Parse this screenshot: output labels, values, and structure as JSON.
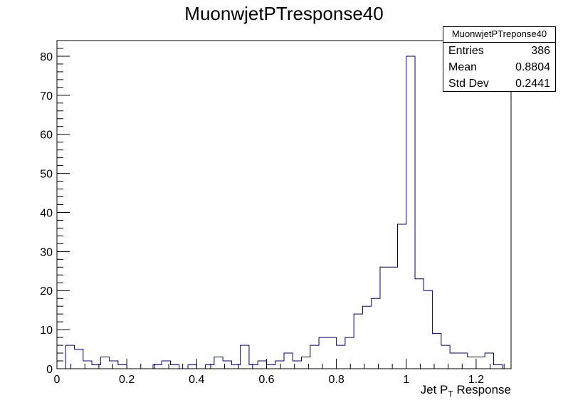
{
  "chart_data": {
    "type": "bar",
    "title": "MuonwjetPTresponse40",
    "xlabel_main": "Jet P",
    "xlabel_sub": "T",
    "xlabel_rest": " Response",
    "ylabel": "",
    "xlim": [
      0,
      1.3
    ],
    "ylim": [
      0,
      84
    ],
    "bin_width": 0.025,
    "bin_values": [
      0,
      6,
      5,
      2,
      1,
      3,
      2,
      1,
      0,
      0,
      0,
      1,
      2,
      1,
      0,
      1,
      0,
      1,
      3,
      2,
      1,
      6,
      1,
      2,
      1,
      2,
      4,
      2,
      3,
      6,
      8,
      8,
      6,
      8,
      14,
      16,
      18,
      26,
      26,
      37,
      80,
      23,
      20,
      9,
      6,
      4,
      4,
      3,
      3,
      4,
      1,
      0
    ],
    "x_ticks": [
      0,
      0.2,
      0.4,
      0.6,
      0.8,
      1,
      1.2
    ],
    "x_tick_labels": [
      "0",
      "0.2",
      "0.4",
      "0.6",
      "0.8",
      "1",
      "1.2"
    ],
    "y_ticks": [
      0,
      10,
      20,
      30,
      40,
      50,
      60,
      70,
      80
    ],
    "y_tick_labels": [
      "0",
      "10",
      "20",
      "30",
      "40",
      "50",
      "60",
      "70",
      "80"
    ],
    "line_color": "#000080",
    "grid": false
  },
  "stats_box": {
    "title": "MuonwjetPTreponse40",
    "entries_label": "Entries",
    "entries_value": "386",
    "mean_label": "Mean",
    "mean_value": "0.8804",
    "stddev_label": "Std Dev",
    "stddev_value": "0.2441"
  }
}
